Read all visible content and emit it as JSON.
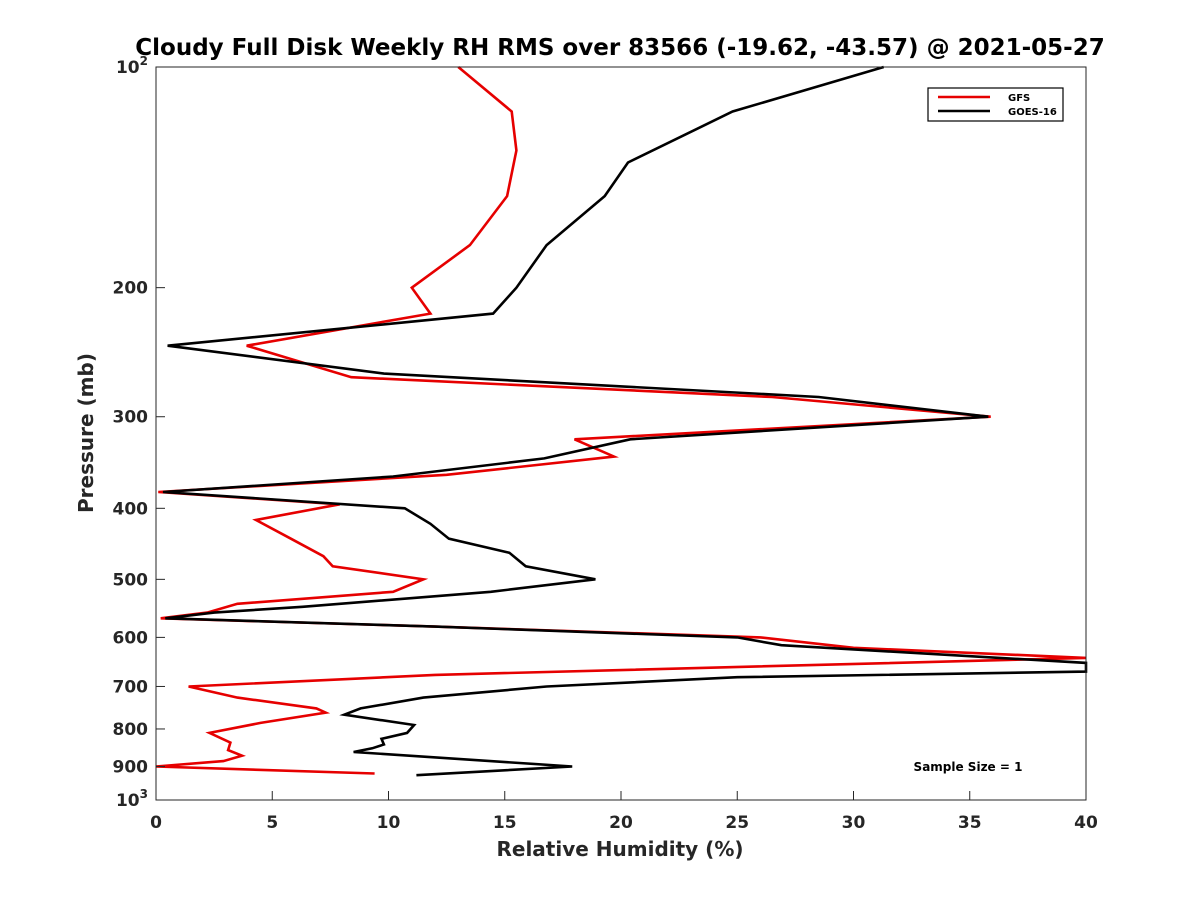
{
  "chart_data": {
    "type": "line",
    "title": "Cloudy Full Disk Weekly RH RMS over 83566 (-19.62, -43.57) @ 2021-05-27",
    "xlabel": "Relative Humidity (%)",
    "ylabel": "Pressure (mb)",
    "xlim": [
      0,
      40
    ],
    "ylim": [
      100,
      1000
    ],
    "yscale": "log",
    "y_reversed": true,
    "grid": false,
    "legend_position": "top-right",
    "x_ticks": [
      "0",
      "5",
      "10",
      "15",
      "20",
      "25",
      "30",
      "35",
      "40"
    ],
    "y_ticks": [
      {
        "value": 100,
        "label": "10",
        "exp": "2"
      },
      {
        "value": 200,
        "label": "200",
        "exp": ""
      },
      {
        "value": 300,
        "label": "300",
        "exp": ""
      },
      {
        "value": 400,
        "label": "400",
        "exp": ""
      },
      {
        "value": 500,
        "label": "500",
        "exp": ""
      },
      {
        "value": 600,
        "label": "600",
        "exp": ""
      },
      {
        "value": 700,
        "label": "700",
        "exp": ""
      },
      {
        "value": 800,
        "label": "800",
        "exp": ""
      },
      {
        "value": 900,
        "label": "900",
        "exp": ""
      },
      {
        "value": 1000,
        "label": "10",
        "exp": "3"
      }
    ],
    "series": [
      {
        "name": "GFS",
        "color": "#e60000",
        "points": [
          [
            13.0,
            100
          ],
          [
            15.3,
            115
          ],
          [
            15.5,
            130
          ],
          [
            15.1,
            150
          ],
          [
            13.5,
            175
          ],
          [
            11.0,
            200
          ],
          [
            11.8,
            217
          ],
          [
            3.9,
            240
          ],
          [
            8.4,
            265
          ],
          [
            26.5,
            282
          ],
          [
            35.9,
            300
          ],
          [
            18.0,
            322
          ],
          [
            19.7,
            340
          ],
          [
            12.5,
            360
          ],
          [
            0.1,
            380
          ],
          [
            7.9,
            395
          ],
          [
            4.3,
            415
          ],
          [
            5.8,
            440
          ],
          [
            7.2,
            465
          ],
          [
            7.6,
            480
          ],
          [
            11.5,
            500
          ],
          [
            10.2,
            520
          ],
          [
            3.5,
            540
          ],
          [
            2.2,
            555
          ],
          [
            0.2,
            565
          ],
          [
            12.0,
            580
          ],
          [
            26.0,
            600
          ],
          [
            30.0,
            620
          ],
          [
            40.0,
            640
          ],
          [
            12.0,
            675
          ],
          [
            1.4,
            700
          ],
          [
            3.5,
            725
          ],
          [
            6.9,
            750
          ],
          [
            7.3,
            760
          ],
          [
            4.5,
            785
          ],
          [
            2.3,
            810
          ],
          [
            3.2,
            835
          ],
          [
            3.1,
            855
          ],
          [
            3.7,
            870
          ],
          [
            2.9,
            885
          ],
          [
            0.0,
            900
          ],
          [
            9.4,
            920
          ]
        ]
      },
      {
        "name": "GOES-16",
        "color": "#000000",
        "points": [
          [
            31.3,
            100
          ],
          [
            24.8,
            115
          ],
          [
            20.3,
            135
          ],
          [
            19.3,
            150
          ],
          [
            16.8,
            175
          ],
          [
            15.5,
            200
          ],
          [
            14.5,
            217
          ],
          [
            0.5,
            240
          ],
          [
            9.8,
            262
          ],
          [
            28.5,
            282
          ],
          [
            35.8,
            300
          ],
          [
            20.4,
            322
          ],
          [
            16.7,
            342
          ],
          [
            10.2,
            362
          ],
          [
            0.3,
            380
          ],
          [
            10.7,
            400
          ],
          [
            11.8,
            420
          ],
          [
            12.6,
            440
          ],
          [
            15.2,
            460
          ],
          [
            15.9,
            480
          ],
          [
            18.9,
            500
          ],
          [
            14.4,
            520
          ],
          [
            6.3,
            545
          ],
          [
            2.5,
            555
          ],
          [
            0.4,
            565
          ],
          [
            12.0,
            580
          ],
          [
            25.0,
            600
          ],
          [
            26.9,
            615
          ],
          [
            40.0,
            650
          ],
          [
            40.0,
            668
          ],
          [
            25.0,
            680
          ],
          [
            16.8,
            700
          ],
          [
            11.5,
            725
          ],
          [
            8.8,
            750
          ],
          [
            8.1,
            765
          ],
          [
            11.1,
            790
          ],
          [
            10.8,
            810
          ],
          [
            9.7,
            825
          ],
          [
            9.8,
            840
          ],
          [
            9.3,
            850
          ],
          [
            8.5,
            860
          ],
          [
            17.9,
            900
          ],
          [
            11.2,
            925
          ]
        ]
      }
    ],
    "annotation": "Sample Size = 1"
  }
}
